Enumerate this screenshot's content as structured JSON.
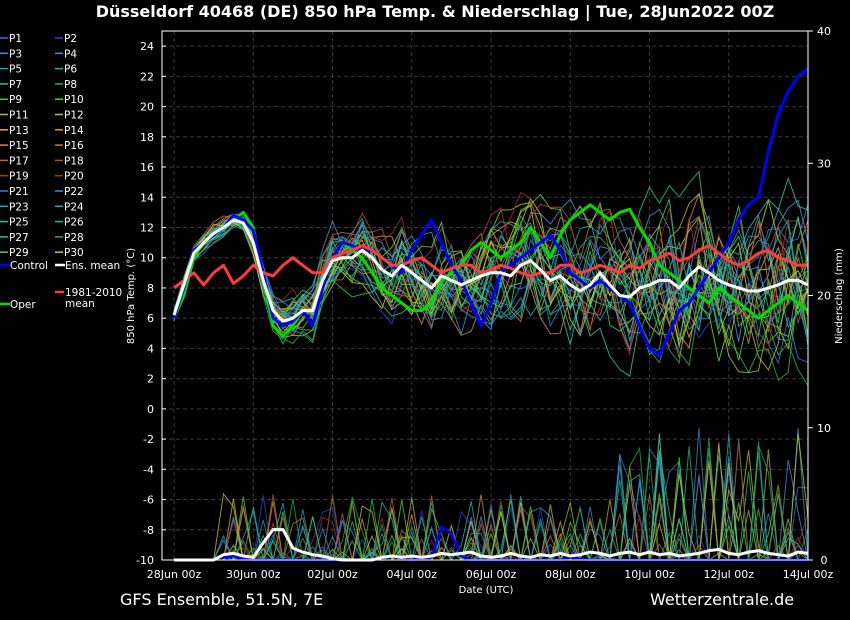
{
  "title": "Düsseldorf 40468 (DE)  850 hPa Temp. & Niederschlag | Tue, 28Jun2022 00Z",
  "footer_left": "GFS Ensemble, 51.5N, 7E",
  "footer_right": "Wetterzentrale.de",
  "chart_data": {
    "type": "line",
    "title": "Düsseldorf 40468 (DE)  850 hPa Temp. & Niederschlag | Tue, 28Jun2022 00Z",
    "xlabel": "Date (UTC)",
    "ylabel_left": "850 hPa Temp. (°C)",
    "ylabel_right": "Niederschlag (mm)",
    "x_ticks": [
      "28Jun 00z",
      "30Jun 00z",
      "02Jul 00z",
      "04Jul 00z",
      "06Jul 00z",
      "08Jul 00z",
      "10Jul 00z",
      "12Jul 00z",
      "14Jul 00z"
    ],
    "y_left_ticks": [
      -10,
      -8,
      -6,
      -4,
      -2,
      0,
      2,
      4,
      6,
      8,
      10,
      12,
      14,
      16,
      18,
      20,
      22,
      24
    ],
    "y_right_ticks": [
      0,
      10,
      20,
      30,
      40
    ],
    "ylim_left": [
      -10,
      25
    ],
    "ylim_right": [
      0,
      40
    ],
    "x_range_hours": [
      0,
      384
    ],
    "step_hours": 6,
    "grid": true,
    "legend": "left",
    "legend_entries": [
      "P1",
      "P2",
      "P3",
      "P4",
      "P5",
      "P6",
      "P7",
      "P8",
      "P9",
      "P10",
      "P11",
      "P12",
      "P13",
      "P14",
      "P15",
      "P16",
      "P17",
      "P18",
      "P19",
      "P20",
      "P21",
      "P22",
      "P23",
      "P24",
      "P25",
      "P26",
      "P27",
      "P28",
      "P29",
      "P30",
      "Control",
      "Ens. mean",
      "Oper",
      "1981-2010 mean"
    ],
    "member_colors": [
      "#3a6df0",
      "#2d44d8",
      "#4a90d9",
      "#3b8ec4",
      "#1fa3b8",
      "#1bb5a0",
      "#22c488",
      "#1fae5e",
      "#33cc33",
      "#4fd12a",
      "#a6c21f",
      "#c9c22a",
      "#d4b02a",
      "#d99a2b",
      "#d08a3a",
      "#c2763a",
      "#c06a3a",
      "#b84a2a",
      "#b0342a",
      "#a82822",
      "#2a7fd6",
      "#3192e0",
      "#2aa0c8",
      "#1fb0b8",
      "#25c2a8",
      "#1fc28a",
      "#2bd06e",
      "#1db34a",
      "#5ad43a",
      "#c8c830"
    ],
    "colors": {
      "control": "#0000ff",
      "ens_mean": "#ffffff",
      "oper": "#00dd00",
      "climate": "#ff3b3b"
    },
    "series": [
      {
        "name": "Control",
        "values": [
          6.0,
          8.0,
          10.5,
          11.0,
          11.5,
          12.0,
          12.8,
          12.5,
          11.8,
          9.0,
          6.0,
          5.5,
          5.8,
          6.5,
          5.5,
          8.0,
          10.0,
          11.0,
          10.8,
          10.5,
          10.5,
          10.0,
          9.5,
          9.0,
          10.5,
          11.5,
          12.5,
          11.0,
          9.5,
          8.5,
          7.0,
          5.5,
          7.0,
          9.0,
          9.5,
          10.0,
          10.5,
          11.0,
          11.5,
          10.5,
          9.0,
          8.5,
          8.0,
          8.5,
          8.0,
          7.5,
          7.0,
          5.5,
          4.0,
          3.5,
          5.0,
          6.5,
          7.0,
          8.0,
          9.0,
          10.0,
          11.0,
          12.5,
          13.5,
          14.0,
          17.0,
          19.5,
          21.0,
          22.0,
          22.5
        ]
      },
      {
        "name": "Ens. mean",
        "values": [
          6.2,
          8.2,
          10.3,
          11.0,
          11.6,
          12.0,
          12.5,
          12.3,
          11.0,
          8.5,
          6.5,
          5.8,
          6.0,
          6.5,
          6.5,
          8.5,
          9.8,
          10.0,
          10.0,
          10.5,
          10.0,
          9.2,
          8.8,
          9.5,
          9.0,
          8.5,
          8.0,
          8.8,
          8.5,
          8.2,
          8.5,
          8.8,
          9.0,
          9.0,
          8.8,
          9.5,
          9.8,
          9.2,
          8.5,
          8.8,
          8.2,
          7.8,
          8.2,
          9.0,
          8.2,
          7.5,
          7.4,
          8.0,
          8.2,
          8.5,
          8.5,
          8.0,
          8.8,
          9.4,
          9.0,
          8.5,
          8.2,
          8.0,
          7.8,
          7.8,
          8.0,
          8.2,
          8.5,
          8.5,
          8.2
        ]
      },
      {
        "name": "Oper",
        "values": [
          6.0,
          7.5,
          10.0,
          11.0,
          11.5,
          12.0,
          12.5,
          13.0,
          12.0,
          8.5,
          5.5,
          4.8,
          5.5,
          6.5,
          6.5,
          8.5,
          10.0,
          11.0,
          10.5,
          10.0,
          9.0,
          8.0,
          7.5,
          7.0,
          6.5,
          6.5,
          7.0,
          8.5,
          9.0,
          9.5,
          10.5,
          11.0,
          10.5,
          10.0,
          10.5,
          11.0,
          12.0,
          11.0,
          10.0,
          11.5,
          12.5,
          13.0,
          13.5,
          13.0,
          12.5,
          13.0,
          13.2,
          12.0,
          11.0,
          9.5,
          9.0,
          8.5,
          8.0,
          7.5,
          7.0,
          8.0,
          7.5,
          7.0,
          6.5,
          6.0,
          6.5,
          7.0,
          7.5,
          7.0,
          6.5
        ]
      },
      {
        "name": "1981-2010 mean",
        "values": [
          8.0,
          8.5,
          9.0,
          8.2,
          9.0,
          9.5,
          8.3,
          8.8,
          9.5,
          9.0,
          8.8,
          9.5,
          10.0,
          9.5,
          9.0,
          9.0,
          10.0,
          10.3,
          10.5,
          10.8,
          10.5,
          10.0,
          9.5,
          9.5,
          9.8,
          10.0,
          9.5,
          9.0,
          9.3,
          9.5,
          9.5,
          9.0,
          9.2,
          9.5,
          9.3,
          9.0,
          8.8,
          9.0,
          9.0,
          9.5,
          9.5,
          9.0,
          9.2,
          9.5,
          9.3,
          9.0,
          9.5,
          9.3,
          9.8,
          10.0,
          10.3,
          9.8,
          10.0,
          10.5,
          10.8,
          10.3,
          9.8,
          9.5,
          9.8,
          10.3,
          10.5,
          10.0,
          9.8,
          9.5,
          9.5
        ]
      }
    ],
    "precipitation_mm": {
      "Control": [
        0,
        0,
        0,
        0,
        0,
        0.2,
        0.3,
        0.1,
        0,
        0,
        0,
        0,
        0,
        0,
        0,
        0,
        0,
        0,
        0,
        0,
        0,
        0.1,
        0.3,
        0.1,
        0,
        0.1,
        0.2,
        2.5,
        2.0,
        0.3,
        0,
        0,
        0,
        0,
        0,
        0,
        0,
        0,
        0,
        0,
        0.2,
        0.1,
        0,
        0,
        0,
        0,
        0,
        0,
        0,
        0,
        0,
        0,
        0,
        0,
        0,
        0,
        0,
        0,
        0,
        0,
        0,
        0,
        0,
        0,
        0
      ],
      "Ens. mean": [
        0,
        0,
        0,
        0,
        0,
        0.4,
        0.5,
        0.3,
        0.2,
        1.3,
        2.3,
        2.3,
        0.9,
        0.6,
        0.4,
        0.3,
        0.1,
        0,
        0,
        0,
        0,
        0.2,
        0.3,
        0.2,
        0.3,
        0.2,
        0.3,
        0.5,
        0.4,
        0.5,
        0.6,
        0.3,
        0.2,
        0.3,
        0.5,
        0.3,
        0.2,
        0.4,
        0.3,
        0.5,
        0.3,
        0.4,
        0.6,
        0.5,
        0.3,
        0.5,
        0.6,
        0.4,
        0.6,
        0.4,
        0.5,
        0.3,
        0.4,
        0.5,
        0.7,
        0.8,
        0.5,
        0.4,
        0.6,
        0.7,
        0.5,
        0.4,
        0.3,
        0.6,
        0.5
      ]
    }
  }
}
